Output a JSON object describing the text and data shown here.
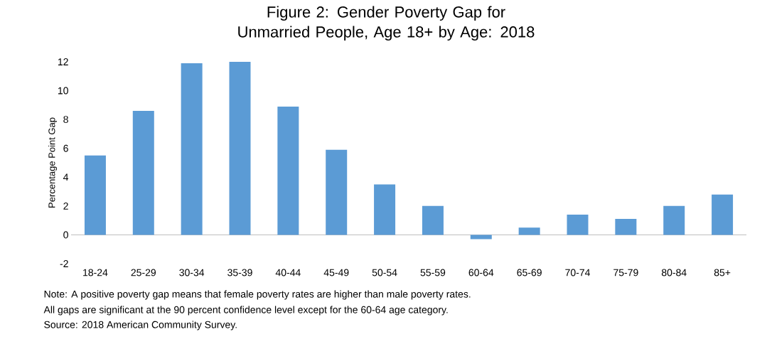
{
  "chart_data": {
    "type": "bar",
    "title": "Figure 2: Gender Poverty Gap for Unmarried People, Age 18+ by Age: 2018",
    "ylabel": "Percentage Point Gap",
    "categories": [
      "18-24",
      "25-29",
      "30-34",
      "35-39",
      "40-44",
      "45-49",
      "50-54",
      "55-59",
      "60-64",
      "65-69",
      "70-74",
      "75-79",
      "80-84",
      "85+"
    ],
    "values": [
      5.5,
      8.6,
      11.9,
      12.0,
      8.9,
      5.9,
      3.5,
      2.0,
      -0.3,
      0.5,
      1.4,
      1.1,
      2.0,
      2.8
    ],
    "color": "#5b9bd5",
    "ylim": [
      -2,
      12
    ],
    "yticks": [
      -2,
      0,
      2,
      4,
      6,
      8,
      10,
      12
    ],
    "annotations": [
      "Note: A positive poverty gap means that female poverty rates are higher than male poverty rates.",
      "All gaps are significant at the 90 percent confidence level except for the 60-64 age category.",
      "Source: 2018 American Community Survey."
    ]
  }
}
